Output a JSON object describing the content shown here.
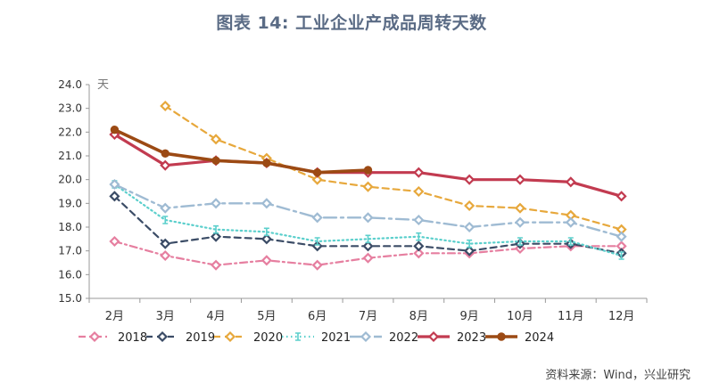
{
  "title": "图表 14: 工业企业产成品周转天数",
  "source": "资料来源：Wind，兴业研究",
  "chart_data": {
    "type": "line",
    "title": "图表 14: 工业企业产成品周转天数",
    "ylabel": "天",
    "xlabel": "",
    "categories": [
      "2月",
      "3月",
      "4月",
      "5月",
      "6月",
      "7月",
      "8月",
      "9月",
      "10月",
      "11月",
      "12月"
    ],
    "ylim": [
      15.0,
      24.0
    ],
    "yticks": [
      "15.0",
      "16.0",
      "17.0",
      "18.0",
      "19.0",
      "20.0",
      "21.0",
      "22.0",
      "23.0",
      "24.0"
    ],
    "grid": false,
    "legend_position": "bottom",
    "series": [
      {
        "name": "2018",
        "color": "#e67fa0",
        "dash": "dashdot",
        "marker": "diamond",
        "width": 2.2,
        "values": [
          17.4,
          16.8,
          16.4,
          16.6,
          16.4,
          16.7,
          16.9,
          16.9,
          17.1,
          17.2,
          17.2
        ]
      },
      {
        "name": "2019",
        "color": "#3b4c66",
        "dash": "dash",
        "marker": "diamond",
        "width": 2.2,
        "values": [
          19.3,
          17.3,
          17.6,
          17.5,
          17.2,
          17.2,
          17.2,
          17.0,
          17.3,
          17.3,
          16.9
        ]
      },
      {
        "name": "2020",
        "color": "#e7a83c",
        "dash": "dash",
        "marker": "diamond",
        "width": 2.2,
        "values": [
          null,
          23.1,
          21.7,
          20.9,
          20.0,
          19.7,
          19.5,
          18.9,
          18.8,
          18.5,
          17.9
        ]
      },
      {
        "name": "2021",
        "color": "#5bcfcc",
        "dash": "dot",
        "marker": "ibar",
        "width": 2.2,
        "values": [
          19.8,
          18.3,
          17.9,
          17.8,
          17.4,
          17.5,
          17.6,
          17.3,
          17.4,
          17.4,
          16.8
        ]
      },
      {
        "name": "2022",
        "color": "#9fbbd3",
        "dash": "longdashdot",
        "marker": "diamond",
        "width": 2.4,
        "values": [
          19.8,
          18.8,
          19.0,
          19.0,
          18.4,
          18.4,
          18.3,
          18.0,
          18.2,
          18.2,
          17.6
        ]
      },
      {
        "name": "2023",
        "color": "#c23b50",
        "dash": "solid",
        "marker": "diamond",
        "width": 3.2,
        "values": [
          21.9,
          20.6,
          20.8,
          20.7,
          20.3,
          20.3,
          20.3,
          20.0,
          20.0,
          19.9,
          19.3
        ]
      },
      {
        "name": "2024",
        "color": "#9c4a14",
        "dash": "solid",
        "marker": "circle",
        "width": 3.6,
        "values": [
          22.1,
          21.1,
          20.8,
          20.7,
          20.3,
          20.4,
          null,
          null,
          null,
          null,
          null
        ]
      }
    ]
  }
}
